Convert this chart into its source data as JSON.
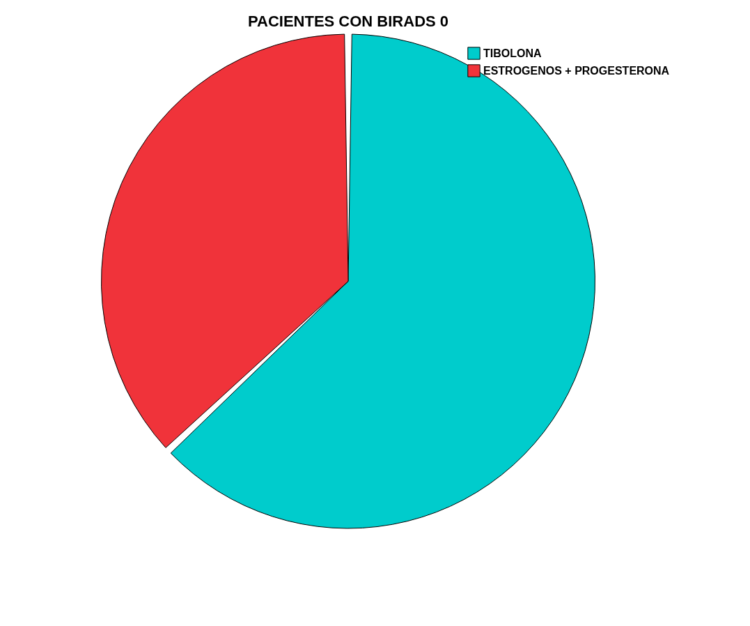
{
  "chart_data": {
    "type": "pie",
    "title": "PACIENTES CON BIRADS 0",
    "categories": [
      "TIBOLONA",
      "ESTROGENOS + PROGESTERONA"
    ],
    "values": [
      63,
      37
    ],
    "colors": [
      "#00cccc",
      "#f0333a"
    ],
    "legend": "top right"
  }
}
